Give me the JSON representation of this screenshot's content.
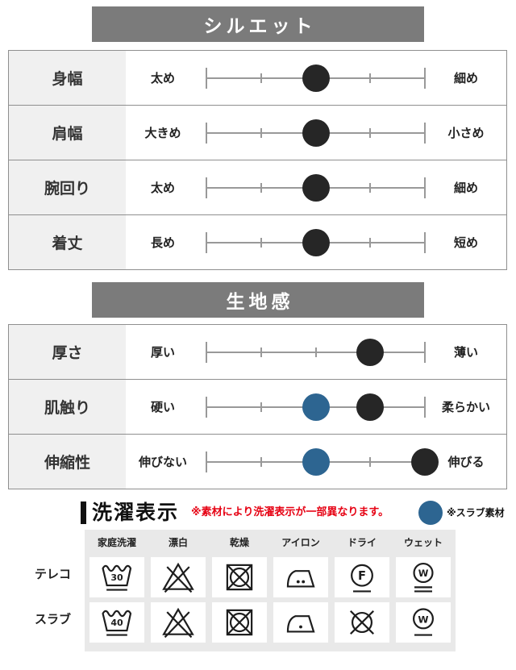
{
  "palette": {
    "header_bar": "#7b7b7b",
    "dark_dot": "#262626",
    "blue_dot": "#2d6591",
    "red_note": "#e60012",
    "panel_bg": "#e9e9e9",
    "label_cell_bg": "#f0f0f0",
    "border": "#8f8f8f",
    "scale": "#999999"
  },
  "scale": {
    "positions": 5
  },
  "sections": [
    {
      "title": "シルエット",
      "rows": [
        {
          "label": "身幅",
          "left": "太め",
          "right": "細め",
          "dots": [
            {
              "pos": 3,
              "color": "dark"
            }
          ]
        },
        {
          "label": "肩幅",
          "left": "大きめ",
          "right": "小さめ",
          "dots": [
            {
              "pos": 3,
              "color": "dark"
            }
          ]
        },
        {
          "label": "腕回り",
          "left": "太め",
          "right": "細め",
          "dots": [
            {
              "pos": 3,
              "color": "dark"
            }
          ]
        },
        {
          "label": "着丈",
          "left": "長め",
          "right": "短め",
          "dots": [
            {
              "pos": 3,
              "color": "dark"
            }
          ]
        }
      ]
    },
    {
      "title": "生地感",
      "rows": [
        {
          "label": "厚さ",
          "left": "厚い",
          "right": "薄い",
          "dots": [
            {
              "pos": 4,
              "color": "dark"
            }
          ]
        },
        {
          "label": "肌触り",
          "left": "硬い",
          "right": "柔らかい",
          "dots": [
            {
              "pos": 3,
              "color": "blue"
            },
            {
              "pos": 4,
              "color": "dark"
            }
          ]
        },
        {
          "label": "伸縮性",
          "left": "伸びない",
          "right": "伸びる",
          "dots": [
            {
              "pos": 3,
              "color": "blue"
            },
            {
              "pos": 5,
              "color": "dark"
            }
          ]
        }
      ]
    }
  ],
  "laundry": {
    "title": "洗濯表示",
    "note": "※素材により洗濯表示が一部異なります。",
    "legend_label": "※スラブ素材",
    "columns": [
      "家庭洗濯",
      "漂白",
      "乾燥",
      "アイロン",
      "ドライ",
      "ウェット"
    ],
    "rows": [
      {
        "label": "テレコ",
        "symbols": [
          "wash-30",
          "no-bleach",
          "no-tumble-dry",
          "iron-2-dots",
          "dry-clean-f",
          "wet-clean-very-gentle"
        ]
      },
      {
        "label": "スラブ",
        "symbols": [
          "wash-40",
          "no-bleach",
          "no-tumble-dry",
          "iron-1-dot",
          "no-dry-clean",
          "wet-clean-gentle"
        ]
      }
    ]
  }
}
